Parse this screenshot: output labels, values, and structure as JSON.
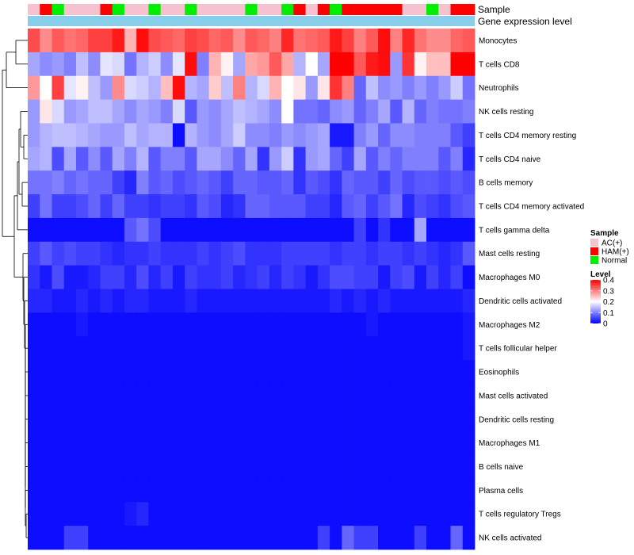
{
  "chart_data": {
    "type": "heatmap",
    "annotation_labels": {
      "sample": "Sample",
      "gene_expression": "Gene expression level"
    },
    "legend": {
      "sample_title": "Sample",
      "sample_entries": [
        {
          "label": "AC(+)",
          "color": "#f7c2cf"
        },
        {
          "label": "HAM(+)",
          "color": "#ff0000"
        },
        {
          "label": "Normal",
          "color": "#00ee00"
        }
      ],
      "level_title": "Level",
      "level_ticks": [
        "0.4",
        "0.3",
        "0.2",
        "0.1",
        "0"
      ],
      "level_range": [
        0,
        0.4
      ]
    },
    "sample_groups": [
      "AC(+)",
      "HAM(+)",
      "Normal",
      "AC(+)",
      "AC(+)",
      "AC(+)",
      "HAM(+)",
      "Normal",
      "AC(+)",
      "AC(+)",
      "Normal",
      "AC(+)",
      "AC(+)",
      "Normal",
      "AC(+)",
      "AC(+)",
      "AC(+)",
      "AC(+)",
      "Normal",
      "AC(+)",
      "AC(+)",
      "Normal",
      "HAM(+)",
      "AC(+)",
      "HAM(+)",
      "Normal",
      "HAM(+)",
      "HAM(+)",
      "HAM(+)",
      "HAM(+)",
      "HAM(+)",
      "AC(+)",
      "AC(+)",
      "Normal",
      "AC(+)",
      "HAM(+)",
      "HAM(+)"
    ],
    "rows": [
      {
        "label": "Monocytes",
        "values": [
          0.34,
          0.29,
          0.33,
          0.31,
          0.32,
          0.35,
          0.35,
          0.38,
          0.26,
          0.39,
          0.34,
          0.33,
          0.32,
          0.35,
          0.34,
          0.32,
          0.33,
          0.29,
          0.33,
          0.32,
          0.3,
          0.37,
          0.31,
          0.32,
          0.33,
          0.38,
          0.35,
          0.3,
          0.33,
          0.39,
          0.3,
          0.37,
          0.31,
          0.29,
          0.29,
          0.32,
          0.33
        ]
      },
      {
        "label": "T cells CD8",
        "values": [
          0.13,
          0.11,
          0.12,
          0.1,
          0.15,
          0.11,
          0.18,
          0.17,
          0.09,
          0.14,
          0.16,
          0.11,
          0.18,
          0.39,
          0.1,
          0.26,
          0.21,
          0.13,
          0.27,
          0.28,
          0.33,
          0.27,
          0.14,
          0.2,
          0.13,
          0.4,
          0.4,
          0.33,
          0.38,
          0.39,
          0.12,
          0.36,
          0.21,
          0.25,
          0.25,
          0.4,
          0.4
        ]
      },
      {
        "label": "Neutrophils",
        "values": [
          0.28,
          0.2,
          0.35,
          0.18,
          0.21,
          0.15,
          0.12,
          0.29,
          0.17,
          0.16,
          0.14,
          0.25,
          0.39,
          0.14,
          0.13,
          0.24,
          0.15,
          0.3,
          0.14,
          0.17,
          0.26,
          0.2,
          0.22,
          0.12,
          0.22,
          0.36,
          0.3,
          0.08,
          0.15,
          0.11,
          0.12,
          0.1,
          0.12,
          0.1,
          0.12,
          0.16,
          0.09
        ]
      },
      {
        "label": "NK cells resting",
        "values": [
          0.12,
          0.22,
          0.17,
          0.12,
          0.13,
          0.15,
          0.15,
          0.13,
          0.11,
          0.13,
          0.12,
          0.1,
          0.17,
          0.07,
          0.12,
          0.11,
          0.13,
          0.15,
          0.14,
          0.13,
          0.11,
          0.2,
          0.09,
          0.09,
          0.08,
          0.11,
          0.12,
          0.08,
          0.1,
          0.13,
          0.07,
          0.14,
          0.08,
          0.1,
          0.09,
          0.09,
          0.1
        ]
      },
      {
        "label": "T cells CD4 memory resting",
        "values": [
          0.12,
          0.14,
          0.15,
          0.15,
          0.14,
          0.13,
          0.12,
          0.12,
          0.15,
          0.13,
          0.14,
          0.14,
          0.01,
          0.14,
          0.12,
          0.11,
          0.13,
          0.16,
          0.11,
          0.11,
          0.1,
          0.12,
          0.11,
          0.12,
          0.13,
          0.02,
          0.02,
          0.1,
          0.12,
          0.08,
          0.11,
          0.11,
          0.1,
          0.1,
          0.1,
          0.07,
          0.05
        ]
      },
      {
        "label": "T cells CD4 naive",
        "values": [
          0.13,
          0.14,
          0.06,
          0.13,
          0.07,
          0.11,
          0.07,
          0.13,
          0.1,
          0.14,
          0.07,
          0.1,
          0.1,
          0.07,
          0.13,
          0.13,
          0.11,
          0.08,
          0.13,
          0.04,
          0.12,
          0.16,
          0.04,
          0.12,
          0.13,
          0.08,
          0.05,
          0.13,
          0.07,
          0.1,
          0.08,
          0.1,
          0.1,
          0.1,
          0.07,
          0.1,
          0.03
        ]
      },
      {
        "label": "B cells memory",
        "values": [
          0.09,
          0.09,
          0.1,
          0.08,
          0.09,
          0.08,
          0.08,
          0.05,
          0.03,
          0.1,
          0.07,
          0.08,
          0.06,
          0.07,
          0.08,
          0.07,
          0.05,
          0.08,
          0.08,
          0.07,
          0.07,
          0.08,
          0.04,
          0.07,
          0.06,
          0.04,
          0.08,
          0.07,
          0.07,
          0.05,
          0.08,
          0.06,
          0.07,
          0.07,
          0.06,
          0.07,
          0.06
        ]
      },
      {
        "label": "T cells CD4 memory activated",
        "values": [
          0.05,
          0.09,
          0.05,
          0.05,
          0.06,
          0.08,
          0.05,
          0.08,
          0.05,
          0.05,
          0.04,
          0.05,
          0.05,
          0.04,
          0.07,
          0.06,
          0.03,
          0.04,
          0.08,
          0.08,
          0.07,
          0.07,
          0.07,
          0.05,
          0.05,
          0.03,
          0.07,
          0.08,
          0.05,
          0.07,
          0.09,
          0.03,
          0.06,
          0.05,
          0.04,
          0.06,
          0.07
        ]
      },
      {
        "label": "T cells gamma delta",
        "values": [
          0.01,
          0.01,
          0.01,
          0.01,
          0.01,
          0.01,
          0.01,
          0.01,
          0.07,
          0.09,
          0.06,
          0.01,
          0.01,
          0.01,
          0.01,
          0.01,
          0.01,
          0.01,
          0.01,
          0.01,
          0.01,
          0.01,
          0.01,
          0.01,
          0.01,
          0.01,
          0.01,
          0.05,
          0.01,
          0.04,
          0.01,
          0.01,
          0.13,
          0.01,
          0.01,
          0.01,
          0.01
        ]
      },
      {
        "label": "Mast cells resting",
        "values": [
          0.05,
          0.07,
          0.05,
          0.06,
          0.05,
          0.05,
          0.04,
          0.03,
          0.04,
          0.04,
          0.05,
          0.04,
          0.04,
          0.04,
          0.05,
          0.04,
          0.05,
          0.06,
          0.04,
          0.04,
          0.04,
          0.05,
          0.05,
          0.05,
          0.05,
          0.04,
          0.05,
          0.05,
          0.04,
          0.05,
          0.05,
          0.04,
          0.05,
          0.04,
          0.03,
          0.04,
          0.07
        ]
      },
      {
        "label": "Macrophages M0",
        "values": [
          0.04,
          0.02,
          0.06,
          0.02,
          0.02,
          0.03,
          0.05,
          0.05,
          0.03,
          0.06,
          0.03,
          0.05,
          0.02,
          0.05,
          0.04,
          0.04,
          0.05,
          0.03,
          0.04,
          0.05,
          0.03,
          0.05,
          0.04,
          0.02,
          0.04,
          0.06,
          0.06,
          0.05,
          0.05,
          0.02,
          0.05,
          0.06,
          0.02,
          0.05,
          0.03,
          0.05,
          0.01
        ]
      },
      {
        "label": "Dendritic cells activated",
        "values": [
          0.03,
          0.03,
          0.02,
          0.02,
          0.03,
          0.02,
          0.03,
          0.02,
          0.03,
          0.03,
          0.02,
          0.02,
          0.02,
          0.03,
          0.02,
          0.02,
          0.02,
          0.02,
          0.02,
          0.02,
          0.02,
          0.02,
          0.02,
          0.02,
          0.02,
          0.03,
          0.02,
          0.03,
          0.02,
          0.03,
          0.02,
          0.02,
          0.02,
          0.02,
          0.02,
          0.02,
          0.03
        ]
      },
      {
        "label": "Macrophages M2",
        "values": [
          0.01,
          0.01,
          0.01,
          0.01,
          0.02,
          0.01,
          0.01,
          0.01,
          0.01,
          0.01,
          0.01,
          0.01,
          0.01,
          0.01,
          0.01,
          0.01,
          0.01,
          0.01,
          0.01,
          0.01,
          0.01,
          0.01,
          0.01,
          0.01,
          0.01,
          0.01,
          0.01,
          0.01,
          0.02,
          0.01,
          0.01,
          0.01,
          0.01,
          0.01,
          0.01,
          0.01,
          0.02
        ]
      },
      {
        "label": "T cells follicular helper",
        "values": [
          0.01,
          0.01,
          0.01,
          0.01,
          0.01,
          0.01,
          0.01,
          0.01,
          0.01,
          0.01,
          0.01,
          0.01,
          0.01,
          0.01,
          0.01,
          0.01,
          0.01,
          0.01,
          0.01,
          0.01,
          0.01,
          0.01,
          0.01,
          0.01,
          0.01,
          0.01,
          0.01,
          0.01,
          0.01,
          0.01,
          0.01,
          0.01,
          0.01,
          0.01,
          0.01,
          0.01,
          0.02
        ]
      },
      {
        "label": "Eosinophils",
        "values": [
          0.01,
          0.01,
          0.01,
          0.01,
          0.01,
          0.01,
          0.01,
          0.01,
          0.01,
          0.01,
          0.01,
          0.01,
          0.01,
          0.01,
          0.01,
          0.01,
          0.01,
          0.01,
          0.01,
          0.01,
          0.01,
          0.01,
          0.01,
          0.01,
          0.01,
          0.01,
          0.01,
          0.01,
          0.01,
          0.01,
          0.01,
          0.01,
          0.01,
          0.01,
          0.01,
          0.01,
          0.01
        ]
      },
      {
        "label": "Mast cells activated",
        "values": [
          0.01,
          0.01,
          0.01,
          0.01,
          0.01,
          0.01,
          0.01,
          0.01,
          0.01,
          0.01,
          0.01,
          0.01,
          0.01,
          0.01,
          0.01,
          0.01,
          0.01,
          0.01,
          0.01,
          0.01,
          0.01,
          0.01,
          0.01,
          0.01,
          0.01,
          0.01,
          0.01,
          0.01,
          0.01,
          0.01,
          0.01,
          0.01,
          0.01,
          0.01,
          0.01,
          0.01,
          0.01
        ]
      },
      {
        "label": "Dendritic cells resting",
        "values": [
          0.01,
          0.01,
          0.01,
          0.01,
          0.01,
          0.01,
          0.01,
          0.01,
          0.01,
          0.01,
          0.01,
          0.01,
          0.01,
          0.01,
          0.01,
          0.01,
          0.01,
          0.01,
          0.01,
          0.01,
          0.01,
          0.01,
          0.01,
          0.01,
          0.01,
          0.01,
          0.01,
          0.01,
          0.01,
          0.01,
          0.01,
          0.01,
          0.01,
          0.01,
          0.01,
          0.01,
          0.01
        ]
      },
      {
        "label": "Macrophages M1",
        "values": [
          0.01,
          0.01,
          0.01,
          0.01,
          0.01,
          0.01,
          0.01,
          0.01,
          0.01,
          0.01,
          0.01,
          0.01,
          0.01,
          0.01,
          0.01,
          0.01,
          0.01,
          0.01,
          0.01,
          0.01,
          0.01,
          0.01,
          0.01,
          0.01,
          0.01,
          0.01,
          0.01,
          0.01,
          0.01,
          0.01,
          0.01,
          0.01,
          0.01,
          0.01,
          0.01,
          0.01,
          0.01
        ]
      },
      {
        "label": "B cells naive",
        "values": [
          0.01,
          0.01,
          0.01,
          0.01,
          0.01,
          0.01,
          0.01,
          0.01,
          0.01,
          0.01,
          0.01,
          0.01,
          0.01,
          0.01,
          0.01,
          0.01,
          0.01,
          0.01,
          0.01,
          0.01,
          0.01,
          0.01,
          0.01,
          0.01,
          0.01,
          0.01,
          0.01,
          0.01,
          0.01,
          0.01,
          0.01,
          0.01,
          0.01,
          0.01,
          0.01,
          0.01,
          0.01
        ]
      },
      {
        "label": "Plasma cells",
        "values": [
          0.01,
          0.01,
          0.01,
          0.01,
          0.01,
          0.01,
          0.01,
          0.01,
          0.01,
          0.01,
          0.01,
          0.01,
          0.01,
          0.01,
          0.01,
          0.01,
          0.01,
          0.01,
          0.01,
          0.01,
          0.01,
          0.01,
          0.01,
          0.01,
          0.01,
          0.01,
          0.01,
          0.01,
          0.01,
          0.01,
          0.01,
          0.01,
          0.01,
          0.01,
          0.01,
          0.01,
          0.01
        ]
      },
      {
        "label": "T cells regulatory  Tregs",
        "values": [
          0.01,
          0.01,
          0.01,
          0.01,
          0.01,
          0.01,
          0.01,
          0.01,
          0.02,
          0.03,
          0.01,
          0.01,
          0.01,
          0.01,
          0.01,
          0.01,
          0.01,
          0.01,
          0.01,
          0.01,
          0.01,
          0.01,
          0.01,
          0.01,
          0.01,
          0.01,
          0.01,
          0.01,
          0.01,
          0.01,
          0.01,
          0.01,
          0.01,
          0.01,
          0.01,
          0.01,
          0.01
        ]
      },
      {
        "label": "NK cells activated",
        "values": [
          0.01,
          0.01,
          0.01,
          0.05,
          0.05,
          0.01,
          0.01,
          0.01,
          0.01,
          0.01,
          0.01,
          0.01,
          0.01,
          0.01,
          0.01,
          0.01,
          0.01,
          0.01,
          0.01,
          0.01,
          0.01,
          0.01,
          0.01,
          0.01,
          0.05,
          0.01,
          0.08,
          0.05,
          0.05,
          0.01,
          0.01,
          0.01,
          0.05,
          0.01,
          0.01,
          0.08,
          0.01
        ]
      }
    ]
  },
  "colors": {
    "scale_low": "#0000ff",
    "scale_mid": "#ffffff",
    "scale_high": "#ff0000",
    "gene_bar": "#87ceeb",
    "gene_bar_edge": "#5ab4e0",
    "text": "#000000",
    "dendrogram": "#000000"
  }
}
